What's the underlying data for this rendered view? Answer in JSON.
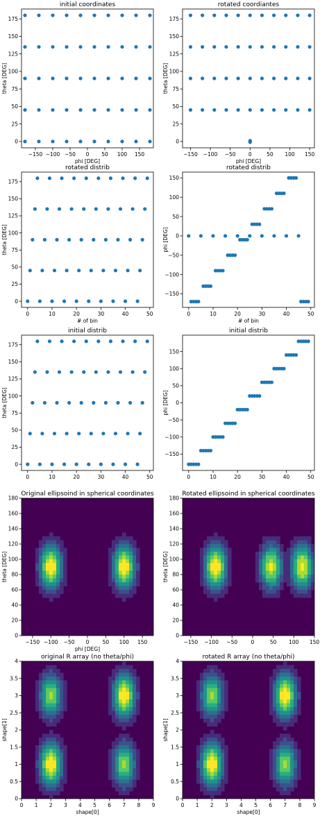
{
  "style": {
    "marker_color": "#1f77b4",
    "contour_colors": [
      "#440154",
      "#472c7a",
      "#3b518b",
      "#2c718e",
      "#21908d",
      "#27ad81",
      "#5cc863",
      "#aadc32",
      "#fde725"
    ]
  },
  "chart_data": [
    {
      "type": "scatter",
      "title": "initial coordinates",
      "xlabel": "phi [DEG]",
      "ylabel": "theta [DEG]",
      "xlim": [
        -190,
        190
      ],
      "ylim": [
        -9,
        189
      ],
      "xticks": [
        -150,
        -100,
        -50,
        0,
        50,
        100,
        150
      ],
      "yticks": [
        0,
        25,
        50,
        75,
        100,
        125,
        150,
        175
      ],
      "phi_values": [
        -180,
        -140,
        -100,
        -60,
        -20,
        20,
        60,
        100,
        140,
        180
      ],
      "theta_values": [
        0,
        45,
        90,
        135,
        180
      ]
    },
    {
      "type": "scatter",
      "title": "rotated coordiantes",
      "xlabel": "phi [DEG]",
      "ylabel": "theta [DEG]",
      "xlim": [
        -170,
        162
      ],
      "ylim": [
        -9,
        189
      ],
      "xticks": [
        -150,
        -100,
        -50,
        0,
        50,
        100,
        150
      ],
      "yticks": [
        0,
        25,
        50,
        75,
        100,
        125,
        150,
        175
      ],
      "phi_values": [
        -150,
        -120,
        -90,
        -60,
        -30,
        0,
        30,
        60,
        90,
        120,
        150
      ],
      "theta_values": [
        45,
        90,
        135,
        180
      ],
      "extra_points": [
        [
          0,
          0
        ],
        [
          0,
          1
        ],
        [
          0,
          -1
        ]
      ]
    },
    {
      "type": "scatter",
      "title": "rotated distrib",
      "xlabel": "# of bin",
      "ylabel": "theta [DEG]",
      "xlim": [
        -2.5,
        51.5
      ],
      "ylim": [
        -9,
        189
      ],
      "xticks": [
        0,
        10,
        20,
        30,
        40,
        50
      ],
      "yticks": [
        0,
        25,
        50,
        75,
        100,
        125,
        150,
        175
      ],
      "points": [
        [
          0,
          0
        ],
        [
          5,
          0
        ],
        [
          10,
          0
        ],
        [
          15,
          0
        ],
        [
          20,
          0
        ],
        [
          25,
          0
        ],
        [
          30,
          0
        ],
        [
          35,
          0
        ],
        [
          40,
          0
        ],
        [
          45,
          0
        ],
        [
          1,
          45
        ],
        [
          6,
          45
        ],
        [
          11,
          45
        ],
        [
          16,
          45
        ],
        [
          21,
          45
        ],
        [
          26,
          45
        ],
        [
          31,
          45
        ],
        [
          36,
          45
        ],
        [
          41,
          45
        ],
        [
          46,
          45
        ],
        [
          2,
          90
        ],
        [
          7,
          90
        ],
        [
          12,
          90
        ],
        [
          17,
          90
        ],
        [
          22,
          90
        ],
        [
          27,
          90
        ],
        [
          32,
          90
        ],
        [
          37,
          90
        ],
        [
          42,
          90
        ],
        [
          47,
          90
        ],
        [
          3,
          135
        ],
        [
          8,
          135
        ],
        [
          13,
          135
        ],
        [
          18,
          135
        ],
        [
          23,
          135
        ],
        [
          28,
          135
        ],
        [
          33,
          135
        ],
        [
          38,
          135
        ],
        [
          43,
          135
        ],
        [
          48,
          135
        ],
        [
          4,
          180
        ],
        [
          9,
          180
        ],
        [
          14,
          180
        ],
        [
          19,
          180
        ],
        [
          24,
          180
        ],
        [
          29,
          180
        ],
        [
          34,
          180
        ],
        [
          39,
          180
        ],
        [
          44,
          180
        ],
        [
          49,
          180
        ]
      ]
    },
    {
      "type": "scatter",
      "title": "rotated distrib",
      "xlabel": "# of bin",
      "ylabel": "phi [DEG]",
      "xlim": [
        -2.5,
        51.5
      ],
      "ylim": [
        -185,
        165
      ],
      "xticks": [
        0,
        10,
        20,
        30,
        40,
        50
      ],
      "yticks": [
        -150,
        -100,
        -50,
        0,
        50,
        100,
        150
      ],
      "points": [
        [
          0,
          0
        ],
        [
          1,
          -170
        ],
        [
          2,
          -170
        ],
        [
          3,
          -170
        ],
        [
          4,
          -170
        ],
        [
          5,
          0
        ],
        [
          6,
          -130
        ],
        [
          7,
          -130
        ],
        [
          8,
          -130
        ],
        [
          9,
          -130
        ],
        [
          10,
          0
        ],
        [
          11,
          -90
        ],
        [
          12,
          -90
        ],
        [
          13,
          -90
        ],
        [
          14,
          -90
        ],
        [
          15,
          0
        ],
        [
          16,
          -50
        ],
        [
          17,
          -50
        ],
        [
          18,
          -50
        ],
        [
          19,
          -50
        ],
        [
          20,
          0
        ],
        [
          21,
          -10
        ],
        [
          22,
          -10
        ],
        [
          23,
          -10
        ],
        [
          24,
          -10
        ],
        [
          25,
          0
        ],
        [
          26,
          30
        ],
        [
          27,
          30
        ],
        [
          28,
          30
        ],
        [
          29,
          30
        ],
        [
          30,
          0
        ],
        [
          31,
          70
        ],
        [
          32,
          70
        ],
        [
          33,
          70
        ],
        [
          34,
          70
        ],
        [
          35,
          0
        ],
        [
          36,
          110
        ],
        [
          37,
          110
        ],
        [
          38,
          110
        ],
        [
          39,
          110
        ],
        [
          40,
          0
        ],
        [
          41,
          150
        ],
        [
          42,
          150
        ],
        [
          43,
          150
        ],
        [
          44,
          150
        ],
        [
          45,
          0
        ],
        [
          46,
          -170
        ],
        [
          47,
          -170
        ],
        [
          48,
          -170
        ],
        [
          49,
          -170
        ]
      ]
    },
    {
      "type": "scatter",
      "title": "initial distrib",
      "xlabel": "",
      "ylabel": "theta [DEG]",
      "xlim": [
        -2.5,
        51.5
      ],
      "ylim": [
        -9,
        189
      ],
      "xticks": [
        0,
        10,
        20,
        30,
        40,
        50
      ],
      "yticks": [
        0,
        25,
        50,
        75,
        100,
        125,
        150,
        175
      ],
      "points": [
        [
          0,
          0
        ],
        [
          5,
          0
        ],
        [
          10,
          0
        ],
        [
          15,
          0
        ],
        [
          20,
          0
        ],
        [
          25,
          0
        ],
        [
          30,
          0
        ],
        [
          35,
          0
        ],
        [
          40,
          0
        ],
        [
          45,
          0
        ],
        [
          1,
          45
        ],
        [
          6,
          45
        ],
        [
          11,
          45
        ],
        [
          16,
          45
        ],
        [
          21,
          45
        ],
        [
          26,
          45
        ],
        [
          31,
          45
        ],
        [
          36,
          45
        ],
        [
          41,
          45
        ],
        [
          46,
          45
        ],
        [
          2,
          90
        ],
        [
          7,
          90
        ],
        [
          12,
          90
        ],
        [
          17,
          90
        ],
        [
          22,
          90
        ],
        [
          27,
          90
        ],
        [
          32,
          90
        ],
        [
          37,
          90
        ],
        [
          42,
          90
        ],
        [
          47,
          90
        ],
        [
          3,
          135
        ],
        [
          8,
          135
        ],
        [
          13,
          135
        ],
        [
          18,
          135
        ],
        [
          23,
          135
        ],
        [
          28,
          135
        ],
        [
          33,
          135
        ],
        [
          38,
          135
        ],
        [
          43,
          135
        ],
        [
          48,
          135
        ],
        [
          4,
          180
        ],
        [
          9,
          180
        ],
        [
          14,
          180
        ],
        [
          19,
          180
        ],
        [
          24,
          180
        ],
        [
          29,
          180
        ],
        [
          34,
          180
        ],
        [
          39,
          180
        ],
        [
          44,
          180
        ],
        [
          49,
          180
        ]
      ]
    },
    {
      "type": "scatter",
      "title": "initial distrib",
      "xlabel": "",
      "ylabel": "phi [DEG]",
      "xlim": [
        -2.5,
        51.5
      ],
      "ylim": [
        -198,
        198
      ],
      "xticks": [
        0,
        10,
        20,
        30,
        40,
        50
      ],
      "yticks": [
        -150,
        -100,
        -50,
        0,
        50,
        100,
        150
      ],
      "points": [
        [
          0,
          -180
        ],
        [
          1,
          -180
        ],
        [
          2,
          -180
        ],
        [
          3,
          -180
        ],
        [
          4,
          -180
        ],
        [
          5,
          -140
        ],
        [
          6,
          -140
        ],
        [
          7,
          -140
        ],
        [
          8,
          -140
        ],
        [
          9,
          -140
        ],
        [
          10,
          -100
        ],
        [
          11,
          -100
        ],
        [
          12,
          -100
        ],
        [
          13,
          -100
        ],
        [
          14,
          -100
        ],
        [
          15,
          -60
        ],
        [
          16,
          -60
        ],
        [
          17,
          -60
        ],
        [
          18,
          -60
        ],
        [
          19,
          -60
        ],
        [
          20,
          -20
        ],
        [
          21,
          -20
        ],
        [
          22,
          -20
        ],
        [
          23,
          -20
        ],
        [
          24,
          -20
        ],
        [
          25,
          20
        ],
        [
          26,
          20
        ],
        [
          27,
          20
        ],
        [
          28,
          20
        ],
        [
          29,
          20
        ],
        [
          30,
          60
        ],
        [
          31,
          60
        ],
        [
          32,
          60
        ],
        [
          33,
          60
        ],
        [
          34,
          60
        ],
        [
          35,
          100
        ],
        [
          36,
          100
        ],
        [
          37,
          100
        ],
        [
          38,
          100
        ],
        [
          39,
          100
        ],
        [
          40,
          140
        ],
        [
          41,
          140
        ],
        [
          42,
          140
        ],
        [
          43,
          140
        ],
        [
          44,
          140
        ],
        [
          45,
          180
        ],
        [
          46,
          180
        ],
        [
          47,
          180
        ],
        [
          48,
          180
        ],
        [
          49,
          180
        ]
      ]
    },
    {
      "type": "heatmap",
      "title": "Original ellipsoind in spherical coordinates",
      "xlabel": "phi [DEG]",
      "ylabel": "theta [DEG]",
      "xlim": [
        -180,
        180
      ],
      "ylim": [
        0,
        180
      ],
      "xticks": [
        -150,
        -100,
        -50,
        0,
        50,
        100,
        150
      ],
      "yticks": [
        0,
        20,
        40,
        60,
        80,
        100,
        120,
        140,
        160,
        180
      ],
      "blobs": [
        [
          -100,
          90,
          1.0
        ],
        [
          100,
          90,
          1.0
        ]
      ]
    },
    {
      "type": "heatmap",
      "title": "Rotated ellipsoind in spherical coordinates",
      "xlabel": "",
      "ylabel": "theta [DEG]",
      "xlim": [
        -170,
        150
      ],
      "ylim": [
        0,
        180
      ],
      "xticks": [
        -150,
        -100,
        -50,
        0,
        50,
        100,
        150
      ],
      "yticks": [
        0,
        20,
        40,
        60,
        80,
        100,
        120,
        140,
        160,
        180
      ],
      "blobs": [
        [
          -90,
          90,
          1.0
        ],
        [
          45,
          90,
          0.9
        ],
        [
          120,
          90,
          0.95
        ]
      ]
    },
    {
      "type": "heatmap",
      "title": "original R array (no theta/phi)",
      "xlabel": "shape[0]",
      "ylabel": "shape[1]",
      "xlim": [
        0,
        9
      ],
      "ylim": [
        0,
        4
      ],
      "xticks": [
        0,
        1,
        2,
        3,
        4,
        5,
        6,
        7,
        8,
        9
      ],
      "yticks": [
        0.0,
        0.5,
        1.0,
        1.5,
        2.0,
        2.5,
        3.0,
        3.5,
        4.0
      ],
      "blobs": [
        [
          2,
          1,
          1.0
        ],
        [
          2,
          3,
          0.8
        ],
        [
          7,
          3,
          1.0
        ],
        [
          7,
          1,
          0.8
        ]
      ]
    },
    {
      "type": "heatmap",
      "title": "rotated R array (no theta/phi)",
      "xlabel": "shape[0]",
      "ylabel": "shape[1]",
      "xlim": [
        0,
        9
      ],
      "ylim": [
        0,
        4
      ],
      "xticks": [
        0,
        1,
        2,
        3,
        4,
        5,
        6,
        7,
        8,
        9
      ],
      "yticks": [
        0.0,
        0.5,
        1.0,
        1.5,
        2.0,
        2.5,
        3.0,
        3.5,
        4.0
      ],
      "blobs": [
        [
          2,
          1,
          1.0
        ],
        [
          2,
          3,
          0.8
        ],
        [
          7,
          3,
          1.0
        ],
        [
          7,
          1,
          0.8
        ]
      ]
    }
  ]
}
